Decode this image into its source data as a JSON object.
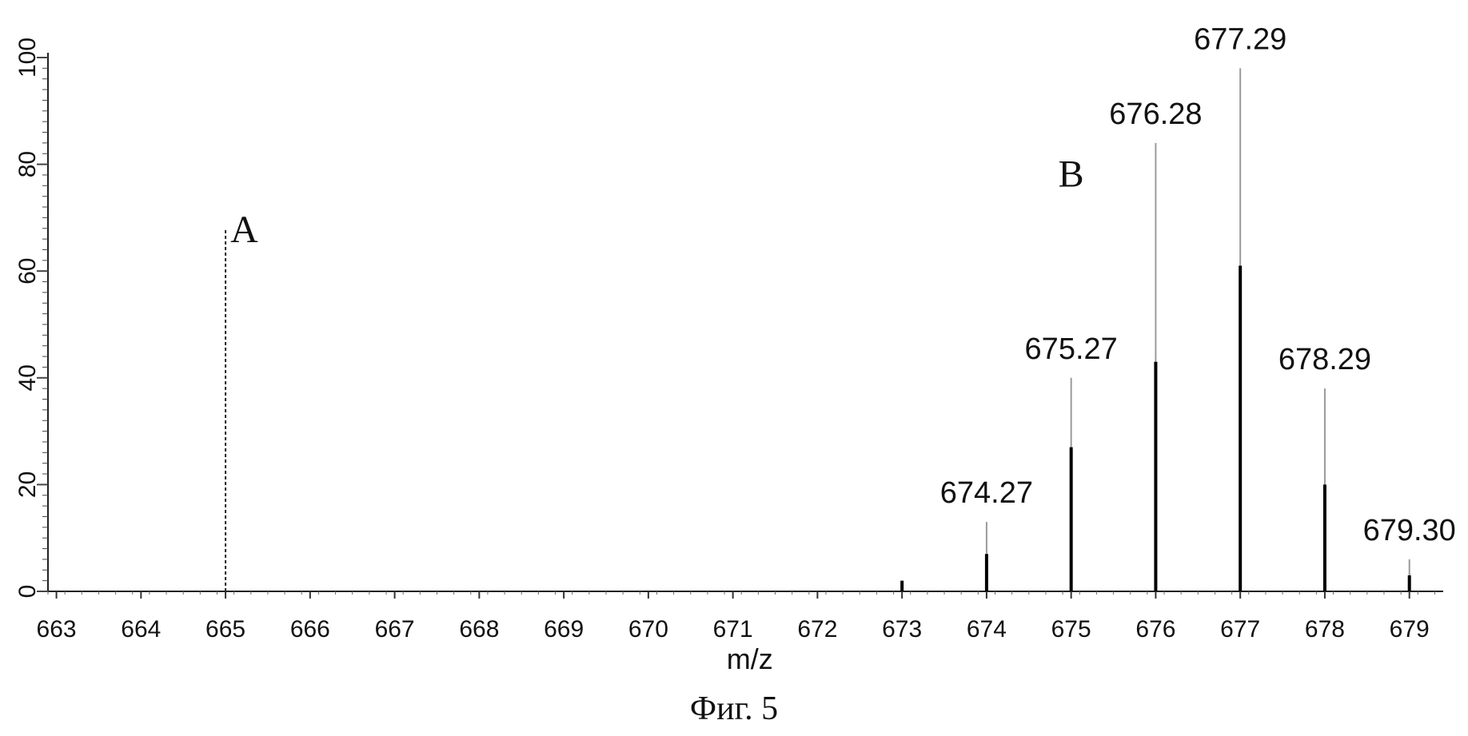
{
  "caption": "Фиг. 5",
  "chart_data": {
    "type": "bar",
    "title": "",
    "xlabel": "m/z",
    "ylabel": "",
    "xlim": [
      662.9,
      679.4
    ],
    "ylim": [
      0,
      100
    ],
    "x_ticks": [
      663,
      664,
      665,
      666,
      667,
      668,
      669,
      670,
      671,
      672,
      673,
      674,
      675,
      676,
      677,
      678,
      679
    ],
    "x_tick_labels": [
      "663",
      "664",
      "665",
      "666",
      "667",
      "668",
      "669",
      "670",
      "671",
      "672",
      "673",
      "674",
      "675",
      "676",
      "677",
      "678",
      "679"
    ],
    "y_ticks": [
      0,
      20,
      40,
      60,
      80,
      100
    ],
    "y_tick_labels": [
      "0",
      "20",
      "40",
      "60",
      "80",
      "100"
    ],
    "grid": false,
    "series": [
      {
        "name": "A",
        "style": "dashed",
        "color": "#222222",
        "peaks": [
          {
            "x": 665.0,
            "y": 68
          }
        ]
      },
      {
        "name": "B",
        "style": "solid",
        "color": "#000000",
        "peaks": [
          {
            "x": 673.0,
            "y": 2
          },
          {
            "x": 674.0,
            "y": 7
          },
          {
            "x": 675.0,
            "y": 27
          },
          {
            "x": 676.0,
            "y": 43
          },
          {
            "x": 677.0,
            "y": 61
          },
          {
            "x": 678.0,
            "y": 20
          },
          {
            "x": 679.0,
            "y": 3
          }
        ]
      },
      {
        "name": "",
        "style": "thin",
        "color": "#9a9a9a",
        "peaks": [
          {
            "x": 674.0,
            "y": 13
          },
          {
            "x": 675.0,
            "y": 40
          },
          {
            "x": 676.0,
            "y": 84
          },
          {
            "x": 677.0,
            "y": 98
          },
          {
            "x": 678.0,
            "y": 38
          },
          {
            "x": 679.0,
            "y": 6
          }
        ]
      }
    ],
    "peak_labels": [
      {
        "text": "674.27",
        "x": 674.27,
        "y": 13
      },
      {
        "text": "675.27",
        "x": 675.27,
        "y": 40
      },
      {
        "text": "676.28",
        "x": 676.28,
        "y": 84
      },
      {
        "text": "677.29",
        "x": 677.29,
        "y": 98
      },
      {
        "text": "678.29",
        "x": 678.29,
        "y": 38
      },
      {
        "text": "679.30",
        "x": 679.3,
        "y": 6
      }
    ],
    "annotations": [
      {
        "text": "A",
        "x": 665.0,
        "y": 68
      },
      {
        "text": "B",
        "x": 675.0,
        "y": 80
      }
    ]
  }
}
